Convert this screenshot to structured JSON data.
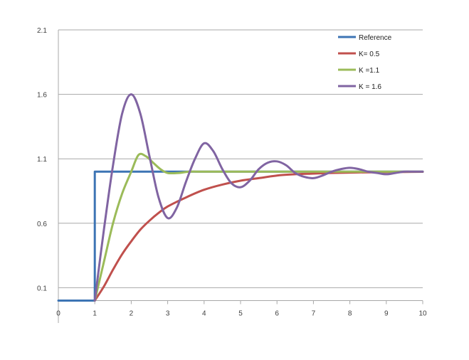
{
  "chart_data": {
    "type": "line",
    "title": "",
    "xlabel": "",
    "ylabel": "",
    "xlim": [
      0,
      10
    ],
    "ylim": [
      -0.08,
      2.1
    ],
    "x_ticks": [
      "0",
      "1",
      "2",
      "3",
      "4",
      "5",
      "6",
      "7",
      "8",
      "9",
      "10"
    ],
    "y_ticks": [
      "0.1",
      "0.6",
      "1.1",
      "1.6",
      "2.1"
    ],
    "grid": "horizontal",
    "legend_position": "top-right",
    "series": [
      {
        "name": "Reference",
        "color": "#3d74b4",
        "x": [
          0,
          1,
          1,
          10
        ],
        "y": [
          0,
          0,
          1,
          1
        ]
      },
      {
        "name": "K= 0.5",
        "color": "#c0504d",
        "x": [
          1,
          1.25,
          1.5,
          1.75,
          2,
          2.25,
          2.5,
          2.75,
          3,
          3.5,
          4,
          4.5,
          5,
          5.5,
          6,
          6.5,
          7,
          7.5,
          8,
          8.5,
          9,
          9.5,
          10
        ],
        "y": [
          0,
          0.11,
          0.24,
          0.36,
          0.46,
          0.55,
          0.62,
          0.68,
          0.73,
          0.8,
          0.86,
          0.9,
          0.93,
          0.95,
          0.97,
          0.98,
          0.985,
          0.99,
          0.993,
          0.995,
          0.997,
          0.998,
          0.999
        ]
      },
      {
        "name": "K =1.1",
        "color": "#9bbb59",
        "x": [
          1,
          1.25,
          1.5,
          1.75,
          2,
          2.2,
          2.4,
          2.6,
          2.8,
          3,
          3.3,
          3.6,
          4,
          5,
          6,
          7,
          8,
          9,
          10
        ],
        "y": [
          0,
          0.3,
          0.6,
          0.83,
          1.0,
          1.13,
          1.12,
          1.07,
          1.02,
          0.99,
          0.99,
          1.0,
          1.0,
          1.0,
          1.0,
          1.0,
          1.0,
          1.0,
          1.0
        ]
      },
      {
        "name": "K = 1.6",
        "color": "#8064a2",
        "x": [
          1,
          1.25,
          1.5,
          1.75,
          2,
          2.25,
          2.5,
          2.75,
          3,
          3.25,
          3.5,
          3.75,
          4,
          4.25,
          4.5,
          4.75,
          5,
          5.25,
          5.5,
          5.75,
          6,
          6.25,
          6.5,
          6.75,
          7,
          7.25,
          7.5,
          7.75,
          8,
          8.25,
          8.5,
          8.75,
          9,
          9.25,
          9.5,
          9.75,
          10
        ],
        "y": [
          0,
          0.55,
          1.05,
          1.45,
          1.6,
          1.45,
          1.12,
          0.8,
          0.64,
          0.72,
          0.92,
          1.1,
          1.22,
          1.16,
          1.02,
          0.91,
          0.88,
          0.93,
          1.02,
          1.07,
          1.08,
          1.05,
          0.99,
          0.96,
          0.95,
          0.97,
          1.0,
          1.02,
          1.03,
          1.02,
          1.0,
          0.99,
          0.98,
          0.99,
          1.0,
          1.0,
          1.0
        ]
      }
    ]
  }
}
